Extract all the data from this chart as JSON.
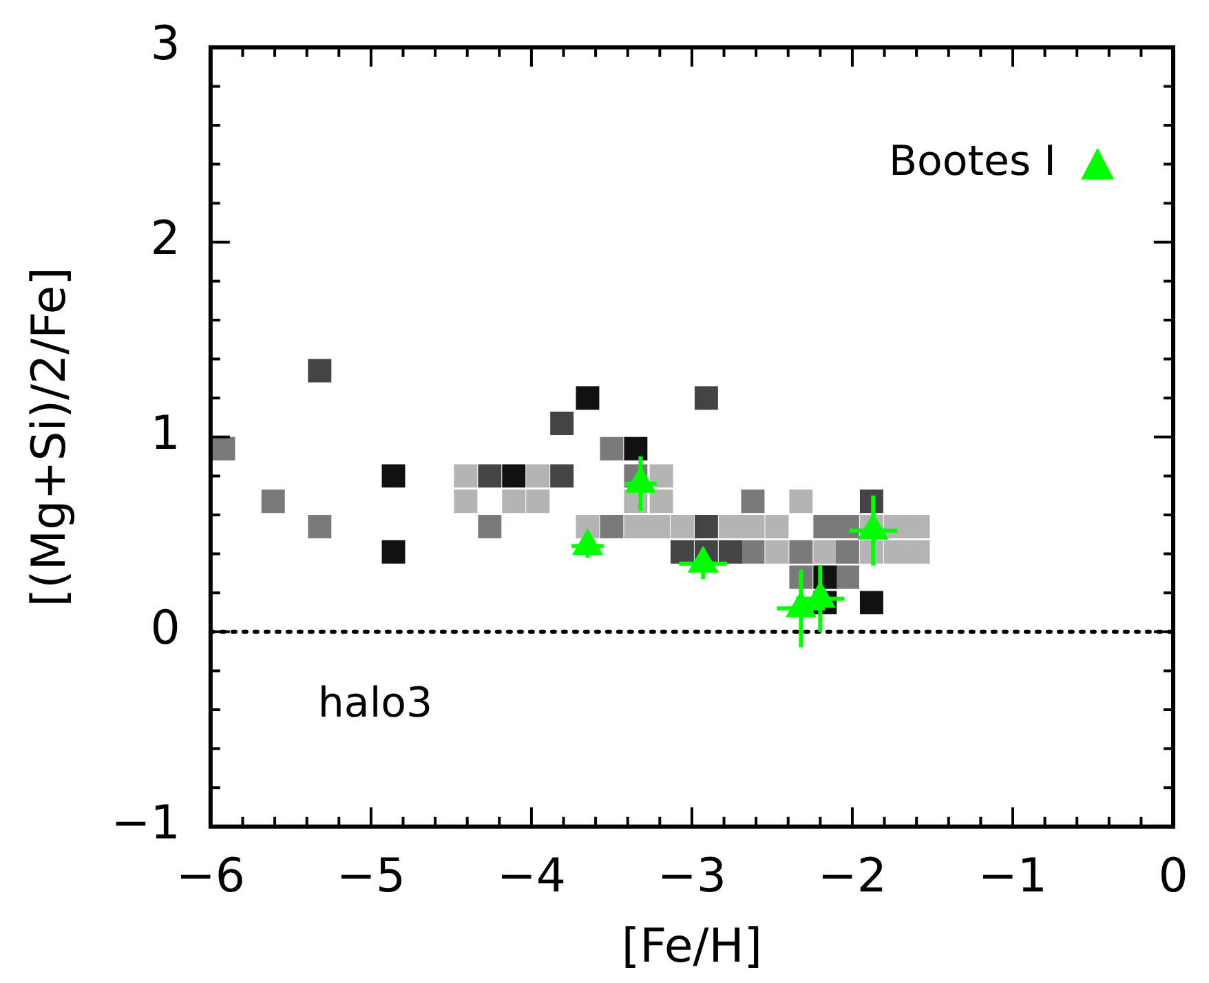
{
  "chart_data": {
    "type": "scatter",
    "xlabel": "[Fe/H]",
    "ylabel": "[(Mg+Si)/2/Fe]",
    "xlim": [
      -6,
      0
    ],
    "ylim": [
      -1,
      3
    ],
    "xticks": [
      {
        "value": -6,
        "label": "−6"
      },
      {
        "value": -5.8,
        "label": null
      },
      {
        "value": -5.6,
        "label": null
      },
      {
        "value": -5.4,
        "label": null
      },
      {
        "value": -5.2,
        "label": null
      },
      {
        "value": -5,
        "label": "−5"
      },
      {
        "value": -4.8,
        "label": null
      },
      {
        "value": -4.6,
        "label": null
      },
      {
        "value": -4.4,
        "label": null
      },
      {
        "value": -4.2,
        "label": null
      },
      {
        "value": -4,
        "label": "−4"
      },
      {
        "value": -3.8,
        "label": null
      },
      {
        "value": -3.6,
        "label": null
      },
      {
        "value": -3.4,
        "label": null
      },
      {
        "value": -3.2,
        "label": null
      },
      {
        "value": -3,
        "label": "−3"
      },
      {
        "value": -2.8,
        "label": null
      },
      {
        "value": -2.6,
        "label": null
      },
      {
        "value": -2.4,
        "label": null
      },
      {
        "value": -2.2,
        "label": null
      },
      {
        "value": -2,
        "label": "−2"
      },
      {
        "value": -1.8,
        "label": null
      },
      {
        "value": -1.6,
        "label": null
      },
      {
        "value": -1.4,
        "label": null
      },
      {
        "value": -1.2,
        "label": null
      },
      {
        "value": -1,
        "label": "−1"
      },
      {
        "value": -0.8,
        "label": null
      },
      {
        "value": -0.6,
        "label": null
      },
      {
        "value": -0.4,
        "label": null
      },
      {
        "value": -0.2,
        "label": null
      },
      {
        "value": 0,
        "label": "0"
      }
    ],
    "yticks": [
      {
        "value": -1,
        "label": "−1"
      },
      {
        "value": -0.8,
        "label": null
      },
      {
        "value": -0.6,
        "label": null
      },
      {
        "value": -0.4,
        "label": null
      },
      {
        "value": -0.2,
        "label": null
      },
      0,
      {
        "value": 0.2,
        "label": null
      },
      {
        "value": 0.4,
        "label": null
      },
      {
        "value": 0.6,
        "label": null
      },
      {
        "value": 0.8,
        "label": null
      },
      1,
      {
        "value": 1.2,
        "label": null
      },
      {
        "value": 1.4,
        "label": null
      },
      {
        "value": 1.6,
        "label": null
      },
      {
        "value": 1.8,
        "label": null
      },
      2,
      {
        "value": 2.2,
        "label": null
      },
      {
        "value": 2.4,
        "label": null
      },
      {
        "value": 2.6,
        "label": null
      },
      {
        "value": 2.8,
        "label": null
      },
      3
    ],
    "legend": "top right",
    "series": [
      {
        "color": "#111111",
        "marker": "square",
        "x": [
          -4.86,
          -4.86,
          -4.11,
          -3.65,
          -3.35,
          -2.17,
          -2.17,
          -1.88
        ],
        "values": [
          0.8,
          0.41,
          0.8,
          1.2,
          0.94,
          0.28,
          0.15,
          0.15
        ]
      },
      {
        "color": "#444444",
        "marker": "square",
        "x": [
          -5.32,
          -4.26,
          -3.81,
          -3.81,
          -2.91,
          -2.91,
          -3.06,
          -2.91,
          -2.76,
          -1.88
        ],
        "values": [
          1.34,
          0.8,
          0.8,
          1.07,
          1.2,
          0.54,
          0.41,
          0.41,
          0.41,
          0.67
        ]
      },
      {
        "color": "#7a7a7a",
        "marker": "square",
        "x": [
          -5.92,
          -5.61,
          -5.32,
          -4.26,
          -3.5,
          -3.35,
          -3.5,
          -2.62,
          -2.17,
          -2.03,
          -2.62,
          -2.32,
          -2.03,
          -2.32,
          -2.03
        ],
        "values": [
          0.94,
          0.67,
          0.54,
          0.54,
          0.94,
          0.8,
          0.54,
          0.41,
          0.54,
          0.54,
          0.67,
          0.41,
          0.41,
          0.28,
          0.28
        ]
      },
      {
        "color": "#b4b4b4",
        "marker": "square",
        "x": [
          -4.41,
          -3.96,
          -4.41,
          -4.11,
          -3.96,
          -3.19,
          -3.35,
          -3.19,
          -3.65,
          -3.35,
          -3.21,
          -3.06,
          -2.76,
          -2.62,
          -2.47,
          -1.88,
          -1.73,
          -1.59,
          -2.47,
          -2.17,
          -1.88,
          -1.73,
          -1.59,
          -2.32
        ],
        "values": [
          0.8,
          0.8,
          0.67,
          0.67,
          0.67,
          0.8,
          0.67,
          0.67,
          0.54,
          0.54,
          0.54,
          0.54,
          0.54,
          0.54,
          0.54,
          0.54,
          0.54,
          0.54,
          0.41,
          0.41,
          0.41,
          0.41,
          0.41,
          0.67
        ]
      },
      {
        "name": "Bootes I",
        "color": "#00ff00",
        "marker": "triangle",
        "x": [
          -3.65,
          -3.32,
          -2.93,
          -2.32,
          -2.2,
          -1.87
        ],
        "values": [
          0.44,
          0.76,
          0.35,
          0.12,
          0.17,
          0.52
        ],
        "errors": [
          0.06,
          0.14,
          0.08,
          0.2,
          0.17,
          0.18
        ],
        "xerrors": [
          0.1,
          0.1,
          0.15,
          0.15,
          0.15,
          0.15
        ]
      }
    ],
    "ref_lines": [
      {
        "axis": "y",
        "value": 0,
        "color": "#000000",
        "line_style": "dotted"
      }
    ],
    "annotations": [
      "halo3"
    ]
  }
}
